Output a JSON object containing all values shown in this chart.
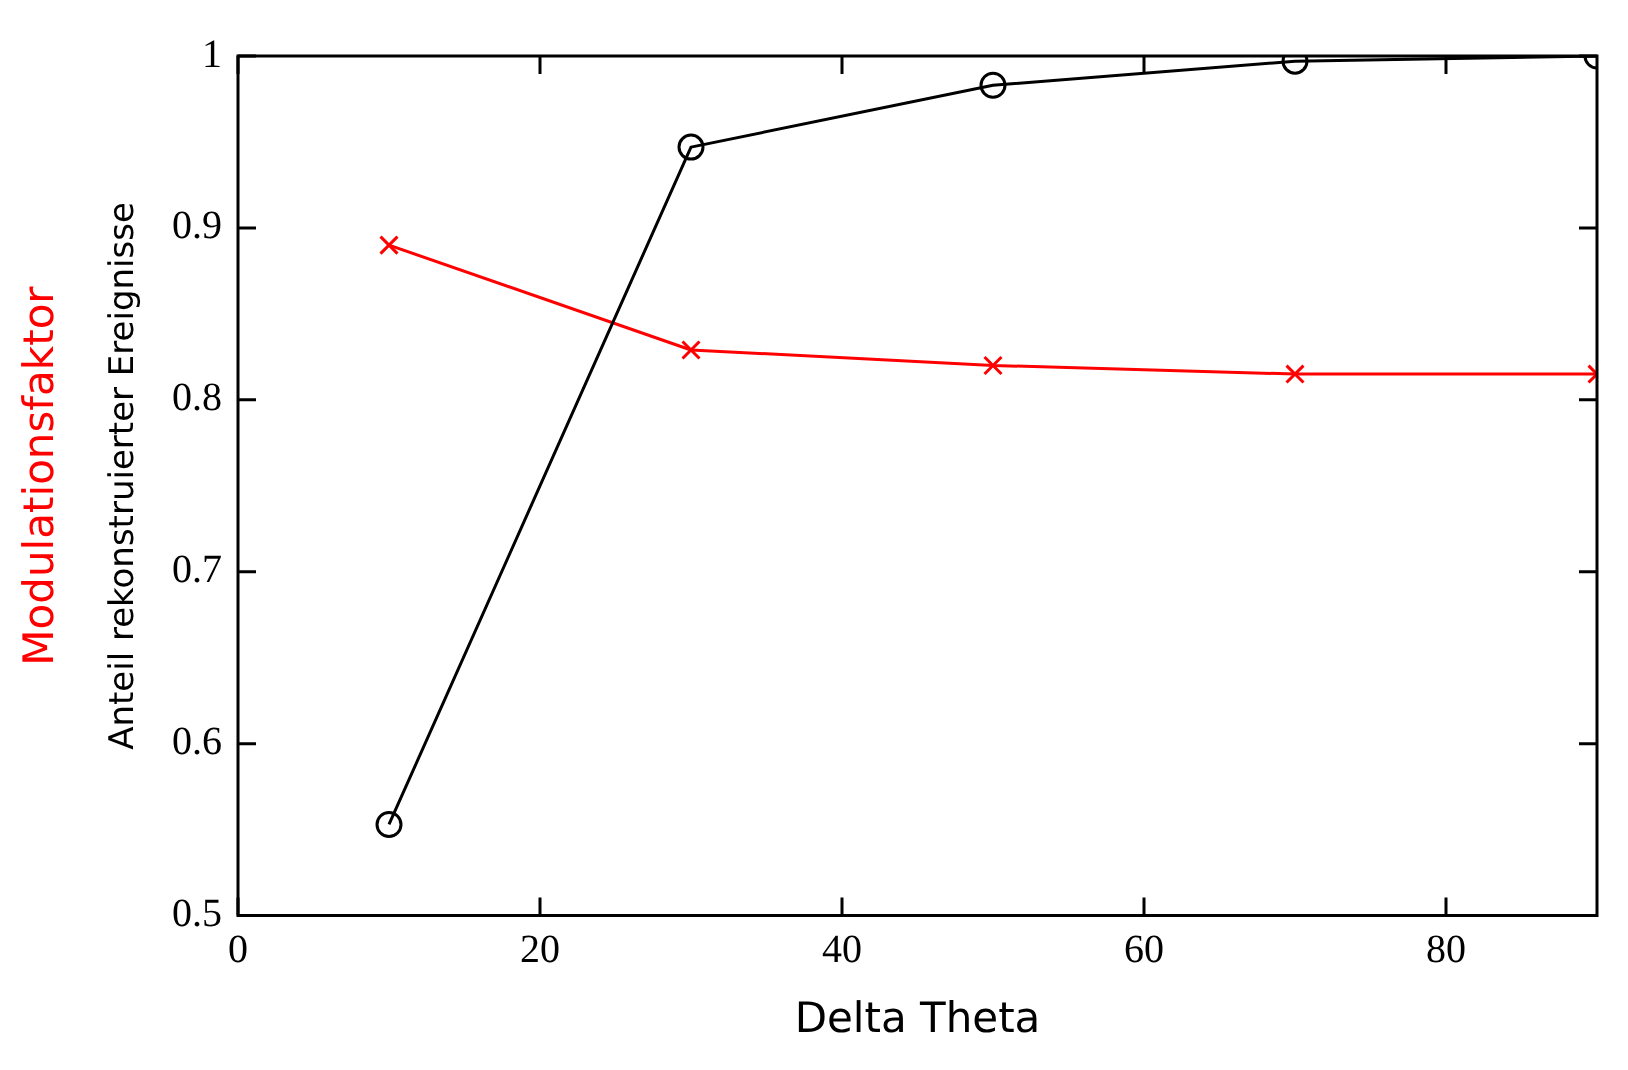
{
  "chart_data": {
    "type": "line",
    "xlabel": "Delta Theta",
    "x": [
      10,
      30,
      50,
      70,
      90
    ],
    "series": [
      {
        "name": "Anteil rekonstruierter Ereignisse",
        "color": "#000000",
        "marker": "circle",
        "values": [
          0.553,
          0.947,
          0.983,
          0.997,
          1.0
        ]
      },
      {
        "name": "Modulationsfaktor",
        "color": "#ff0000",
        "marker": "cross",
        "values": [
          0.89,
          0.829,
          0.82,
          0.815,
          0.815
        ]
      }
    ],
    "xlim": [
      0,
      90
    ],
    "xticks": [
      0,
      20,
      40,
      60,
      80
    ],
    "ylim": [
      0.5,
      1
    ],
    "yticks": [
      0.5,
      0.6,
      0.7,
      0.8,
      0.9,
      1
    ],
    "grid": false,
    "legend": false
  }
}
